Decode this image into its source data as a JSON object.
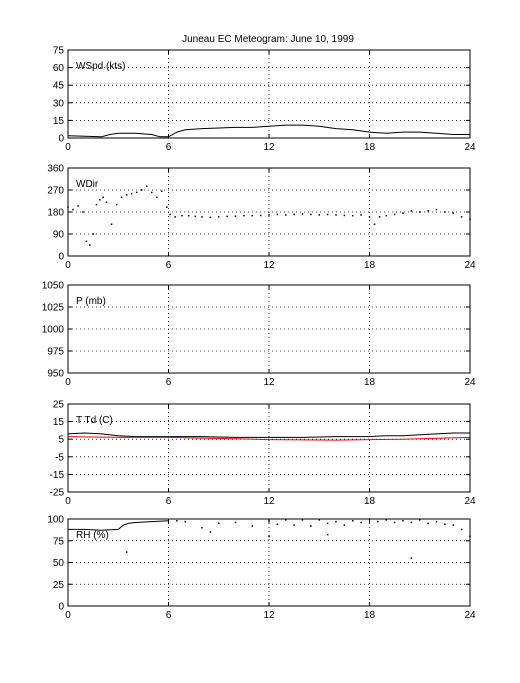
{
  "figure": {
    "title": "Juneau EC Meteogram:       June 10, 1999"
  },
  "chart_data": [
    {
      "type": "line",
      "label": "WSpd (kts)",
      "xlim": [
        0,
        24
      ],
      "ylim": [
        0,
        75
      ],
      "xticks": [
        0,
        6,
        12,
        18,
        24
      ],
      "yticks": [
        0,
        15,
        30,
        45,
        60,
        75
      ],
      "grid": true,
      "series": [
        {
          "color": "#000000",
          "style": "line",
          "x": [
            0,
            1,
            2,
            2.5,
            3,
            4,
            5,
            5.5,
            6,
            6.5,
            7,
            8,
            9,
            10,
            11,
            12,
            13,
            14,
            15,
            16,
            17,
            18,
            19,
            20,
            21,
            22,
            23,
            24
          ],
          "y": [
            2,
            1.5,
            1,
            3,
            4,
            4,
            3,
            1,
            1,
            5,
            7,
            8,
            8.5,
            9,
            9,
            10,
            11,
            11,
            10,
            8,
            7,
            5,
            4,
            5,
            5,
            4,
            3,
            3
          ]
        }
      ]
    },
    {
      "type": "scatter",
      "label": "WDir",
      "xlim": [
        0,
        24
      ],
      "ylim": [
        0,
        360
      ],
      "xticks": [
        0,
        6,
        12,
        18,
        24
      ],
      "yticks": [
        0,
        90,
        180,
        270,
        360
      ],
      "grid": true,
      "series": [
        {
          "color": "#000000",
          "style": "dots",
          "x": [
            0,
            0.3,
            0.6,
            0.9,
            1.1,
            1.3,
            1.5,
            1.7,
            1.9,
            2.1,
            2.3,
            2.6,
            2.9,
            3.2,
            3.5,
            3.8,
            4.1,
            4.4,
            4.7,
            5.0,
            5.3,
            5.6,
            5.9,
            6.1,
            6.4,
            6.8,
            7.2,
            7.6,
            8,
            8.5,
            9,
            9.5,
            10,
            10.5,
            11,
            11.5,
            12,
            12.5,
            13,
            13.5,
            14,
            14.5,
            15,
            15.5,
            16,
            16.5,
            17,
            17.5,
            18,
            18.3,
            18.6,
            19,
            19.5,
            20,
            20.5,
            21,
            21.5,
            22,
            22.5,
            23,
            23.5,
            24
          ],
          "y": [
            200,
            190,
            205,
            180,
            60,
            45,
            90,
            210,
            230,
            240,
            220,
            130,
            210,
            240,
            250,
            255,
            260,
            270,
            285,
            260,
            240,
            265,
            200,
            170,
            160,
            165,
            165,
            162,
            160,
            158,
            160,
            162,
            163,
            165,
            165,
            166,
            168,
            170,
            168,
            170,
            172,
            170,
            168,
            170,
            168,
            166,
            165,
            168,
            160,
            130,
            160,
            165,
            170,
            175,
            185,
            180,
            185,
            190,
            180,
            175,
            160,
            150
          ]
        }
      ]
    },
    {
      "type": "line",
      "label": "P (mb)",
      "xlim": [
        0,
        24
      ],
      "ylim": [
        950,
        1050
      ],
      "xticks": [
        0,
        6,
        12,
        18,
        24
      ],
      "yticks": [
        950,
        975,
        1000,
        1025,
        1050
      ],
      "grid": true,
      "series": []
    },
    {
      "type": "line",
      "label": "T Td (C)",
      "xlim": [
        0,
        24
      ],
      "ylim": [
        -25,
        25
      ],
      "xticks": [
        0,
        6,
        12,
        18,
        24
      ],
      "yticks": [
        -25,
        -15,
        -5,
        5,
        15,
        25
      ],
      "grid": true,
      "series": [
        {
          "color": "#000000",
          "style": "line",
          "x": [
            0,
            1,
            2,
            3,
            4,
            5,
            6,
            8,
            10,
            12,
            14,
            16,
            18,
            19,
            20,
            21,
            22,
            23,
            24
          ],
          "y": [
            8,
            8.5,
            8,
            7,
            6.5,
            6.5,
            6.5,
            6.5,
            6,
            6,
            6,
            6.5,
            6.5,
            7,
            7,
            7.5,
            8,
            8.5,
            8.5
          ]
        },
        {
          "color": "#ff0000",
          "style": "line",
          "x": [
            0,
            2,
            4,
            6,
            8,
            10,
            12,
            14,
            16,
            18,
            20,
            22,
            24
          ],
          "y": [
            6.5,
            6.2,
            6,
            6,
            5.6,
            5.2,
            4.8,
            4.6,
            4.5,
            4.8,
            5,
            5.5,
            6
          ]
        }
      ]
    },
    {
      "type": "scatter",
      "label": "RH (%)",
      "xlim": [
        0,
        24
      ],
      "ylim": [
        0,
        100
      ],
      "xticks": [
        0,
        6,
        12,
        18,
        24
      ],
      "yticks": [
        0,
        25,
        50,
        75,
        100
      ],
      "grid": true,
      "series": [
        {
          "color": "#000000",
          "style": "line",
          "x": [
            0,
            1,
            2,
            3,
            3.3,
            3.6,
            4,
            5,
            6
          ],
          "y": [
            88,
            88,
            87,
            88,
            93,
            95,
            96,
            97,
            98
          ]
        },
        {
          "color": "#000000",
          "style": "dots",
          "x": [
            6.5,
            7,
            8,
            9,
            10,
            11,
            12,
            12.5,
            13,
            13.5,
            14,
            14.5,
            15,
            15.5,
            16,
            16.5,
            17,
            17.5,
            18,
            18.5,
            19,
            19.5,
            20,
            20.5,
            21,
            21.5,
            22,
            22.5,
            23,
            23.5,
            24,
            3.5,
            8.5,
            12,
            15.5,
            20.5
          ],
          "y": [
            98,
            97,
            90,
            95,
            96,
            92,
            98,
            94,
            99,
            93,
            99,
            92,
            99,
            95,
            97,
            93,
            98,
            96,
            100,
            97,
            99,
            96,
            98,
            96,
            99,
            95,
            97,
            94,
            93,
            88,
            80,
            62,
            85,
            80,
            82,
            55
          ]
        }
      ]
    }
  ]
}
